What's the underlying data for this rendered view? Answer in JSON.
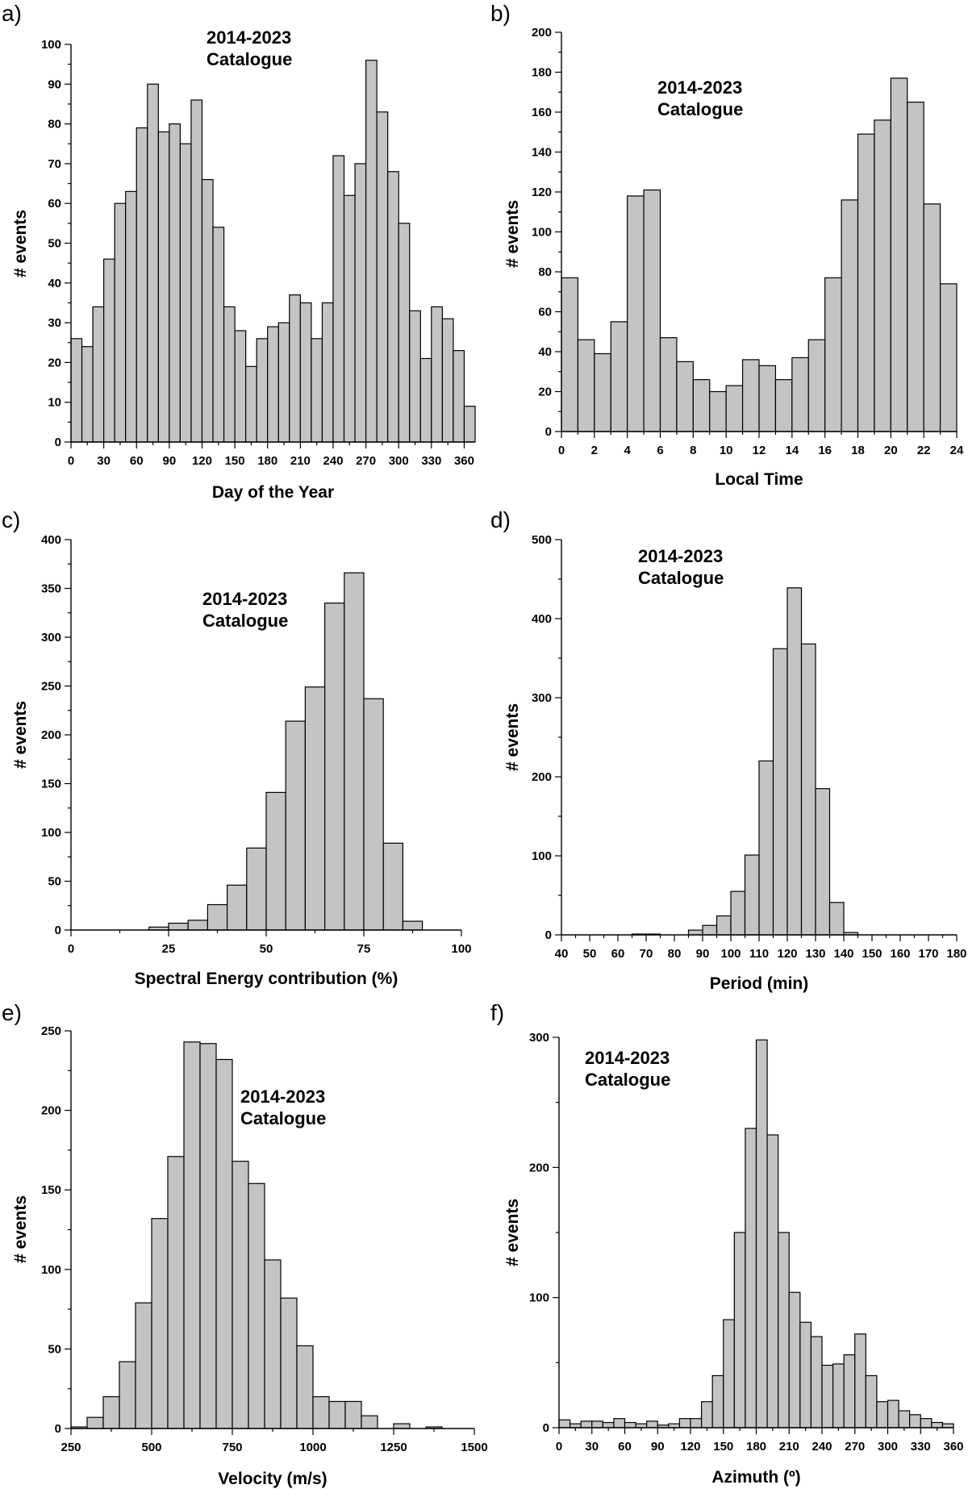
{
  "colors": {
    "bar_fill": "#c4c4c4",
    "bar_stroke": "#000000",
    "text": "#000000"
  },
  "chart_data": [
    {
      "panel": "a)",
      "type": "bar",
      "title": "",
      "annotation": [
        "2014-2023",
        "Catalogue"
      ],
      "xlabel": "Day of the Year",
      "ylabel": "# events",
      "xlim": [
        0,
        370
      ],
      "ylim": [
        0,
        100
      ],
      "xticks": [
        0,
        30,
        60,
        90,
        120,
        150,
        180,
        210,
        240,
        270,
        300,
        330,
        360
      ],
      "yticks": [
        0,
        10,
        20,
        30,
        40,
        50,
        60,
        70,
        80,
        90,
        100
      ],
      "bin_start": 0,
      "bin_width": 10,
      "values": [
        26,
        24,
        34,
        46,
        60,
        63,
        79,
        90,
        78,
        80,
        75,
        86,
        66,
        54,
        34,
        28,
        19,
        26,
        29,
        30,
        37,
        35,
        26,
        35,
        72,
        62,
        70,
        96,
        83,
        68,
        55,
        33,
        21,
        34,
        31,
        23,
        9
      ]
    },
    {
      "panel": "b)",
      "type": "bar",
      "title": "",
      "annotation": [
        "2014-2023",
        "Catalogue"
      ],
      "xlabel": "Local Time",
      "ylabel": "# events",
      "xlim": [
        0,
        24
      ],
      "ylim": [
        0,
        200
      ],
      "xticks": [
        0,
        2,
        4,
        6,
        8,
        10,
        12,
        14,
        16,
        18,
        20,
        22,
        24
      ],
      "yticks": [
        0,
        20,
        40,
        60,
        80,
        100,
        120,
        140,
        160,
        180,
        200
      ],
      "bin_start": 0,
      "bin_width": 1,
      "values": [
        77,
        46,
        39,
        55,
        118,
        121,
        47,
        35,
        26,
        20,
        23,
        36,
        33,
        26,
        37,
        46,
        77,
        116,
        149,
        156,
        177,
        165,
        114,
        74
      ]
    },
    {
      "panel": "c)",
      "type": "bar",
      "title": "",
      "annotation": [
        "2014-2023",
        "Catalogue"
      ],
      "xlabel": "Spectral Energy contribution (%)",
      "ylabel": "# events",
      "xlim": [
        0,
        100
      ],
      "ylim": [
        0,
        400
      ],
      "xticks": [
        0,
        25,
        50,
        75,
        100
      ],
      "yticks": [
        0,
        50,
        100,
        150,
        200,
        250,
        300,
        350,
        400
      ],
      "bin_start": 20,
      "bin_width": 5,
      "values": [
        3,
        7,
        10,
        26,
        46,
        84,
        141,
        214,
        249,
        335,
        366,
        237,
        89,
        9
      ]
    },
    {
      "panel": "d)",
      "type": "bar",
      "title": "",
      "annotation": [
        "2014-2023",
        "Catalogue"
      ],
      "xlabel": "Period (min)",
      "ylabel": "# events",
      "xlim": [
        40,
        180
      ],
      "ylim": [
        0,
        500
      ],
      "xticks": [
        40,
        50,
        60,
        70,
        80,
        90,
        100,
        110,
        120,
        130,
        140,
        150,
        160,
        170,
        180
      ],
      "yticks": [
        0,
        100,
        200,
        300,
        400,
        500
      ],
      "bin_start": 65,
      "bin_width": 5,
      "values": [
        1,
        1,
        0,
        0,
        6,
        12,
        24,
        55,
        101,
        220,
        362,
        439,
        368,
        185,
        41,
        3
      ]
    },
    {
      "panel": "e)",
      "type": "bar",
      "title": "",
      "annotation": [
        "2014-2023",
        "Catalogue"
      ],
      "xlabel": "Velocity (m/s)",
      "ylabel": "# events",
      "xlim": [
        250,
        1500
      ],
      "ylim": [
        0,
        250
      ],
      "xticks": [
        250,
        500,
        750,
        1000,
        1250,
        1500
      ],
      "yticks": [
        0,
        50,
        100,
        150,
        200,
        250
      ],
      "bin_start": 250,
      "bin_width": 50,
      "values": [
        1,
        7,
        20,
        42,
        79,
        132,
        171,
        243,
        242,
        232,
        168,
        154,
        106,
        82,
        52,
        20,
        17,
        17,
        8,
        0,
        3,
        0,
        1
      ]
    },
    {
      "panel": "f)",
      "type": "bar",
      "title": "",
      "annotation": [
        "2014-2023",
        "Catalogue"
      ],
      "xlabel": "Azimuth (º)",
      "ylabel": "# events",
      "xlim": [
        0,
        360
      ],
      "ylim": [
        0,
        300
      ],
      "xticks": [
        0,
        30,
        60,
        90,
        120,
        150,
        180,
        210,
        240,
        270,
        300,
        330,
        360
      ],
      "yticks": [
        0,
        100,
        200,
        300
      ],
      "bin_start": 0,
      "bin_width": 10,
      "values": [
        6,
        3,
        5,
        5,
        4,
        7,
        4,
        3,
        5,
        2,
        3,
        7,
        7,
        20,
        40,
        83,
        150,
        230,
        298,
        225,
        150,
        104,
        81,
        70,
        48,
        49,
        56,
        72,
        40,
        20,
        21,
        13,
        10,
        7,
        4,
        3
      ]
    }
  ]
}
